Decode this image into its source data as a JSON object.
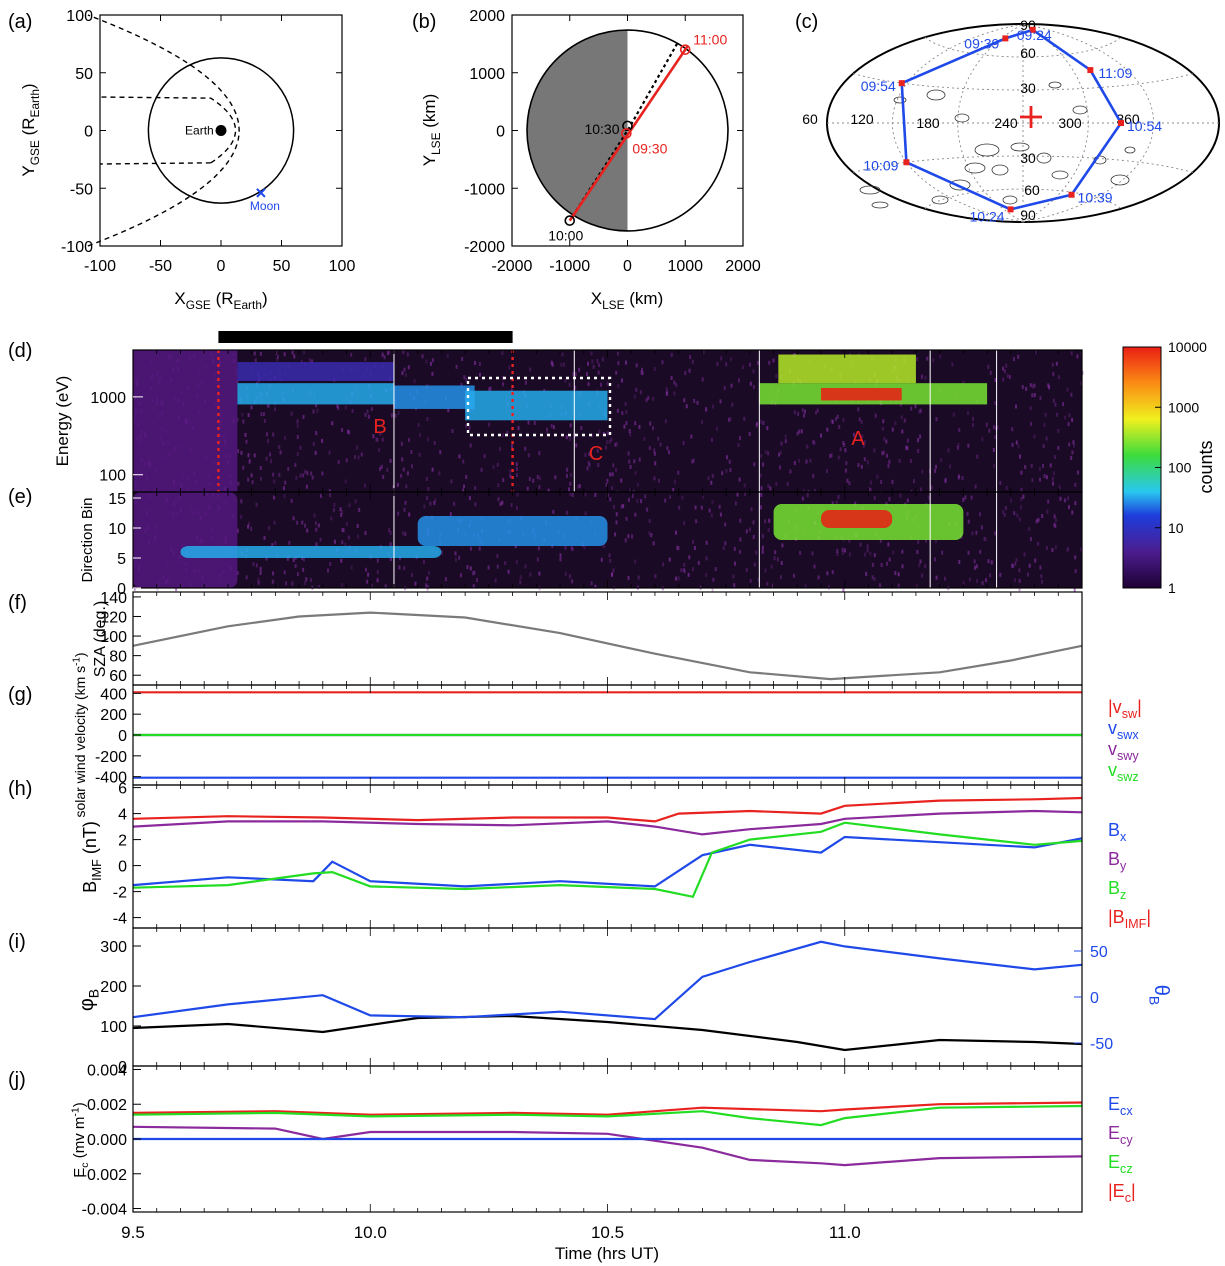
{
  "panel_labels": [
    "(a)",
    "(b)",
    "(c)",
    "(d)",
    "(e)",
    "(f)",
    "(g)",
    "(h)",
    "(i)",
    "(j)"
  ],
  "colors": {
    "red": "#e8231f",
    "blue": "#1f49e8",
    "green": "#22dd22",
    "purple": "#8b2a9c",
    "black": "#000000",
    "gray": "#7a7a7a"
  },
  "chart_data": [
    {
      "type": "scatter",
      "panel": "(a)",
      "xlabel": "X",
      "xlabel_sub": "GSE",
      "xlabel_tail": " (R",
      "xlabel_sub2": "Earth",
      "xlabel_end": ")",
      "ylabel": "Y",
      "ylabel_sub": "GSE",
      "ylabel_tail": " (R",
      "ylabel_sub2": "Earth",
      "ylabel_end": ")",
      "xlim": [
        -100,
        100
      ],
      "ylim": [
        -100,
        100
      ],
      "xticks": [
        -100,
        -50,
        0,
        50,
        100
      ],
      "yticks": [
        -100,
        -50,
        0,
        50,
        100
      ],
      "annotations": [
        "Earth",
        "Moon"
      ],
      "moon_position": [
        33,
        -54
      ],
      "moon_orbit_radius": 60
    },
    {
      "type": "line",
      "panel": "(b)",
      "xlabel": "X",
      "xlabel_sub": "LSE",
      "xlabel_tail": " (km)",
      "ylabel": "Y",
      "ylabel_sub": "LSE",
      "ylabel_tail": " (km)",
      "xlim": [
        -2000,
        2000
      ],
      "ylim": [
        -2000,
        2000
      ],
      "xticks": [
        -2000,
        -1000,
        0,
        1000,
        2000
      ],
      "yticks": [
        -2000,
        -1000,
        0,
        1000,
        2000
      ],
      "moon_radius": 1740,
      "trajectory": [
        [
          -1000,
          -1560
        ],
        [
          1040,
          1460
        ]
      ],
      "dotted_path": [
        [
          -1000,
          -1560
        ],
        [
          20,
          30
        ],
        [
          880,
          1540
        ]
      ],
      "markers": [
        {
          "label": "11:00",
          "x": 1000,
          "y": 1400,
          "color": "red"
        },
        {
          "label": "10:30",
          "x": 0,
          "y": 80,
          "color": "black"
        },
        {
          "label": "09:30",
          "x": -20,
          "y": -50,
          "color": "red"
        },
        {
          "label": "10:00",
          "x": -1000,
          "y": -1560,
          "color": "black"
        }
      ]
    },
    {
      "type": "scatter",
      "panel": "(c)",
      "grid_labels": [
        "90",
        "60",
        "30",
        "30",
        "60",
        "90",
        "60",
        "120",
        "180",
        "240",
        "300",
        "360"
      ],
      "times": [
        {
          "label": "09:24",
          "lon": 300,
          "lat": 84
        },
        {
          "label": "09:39",
          "lon": 190,
          "lat": 76
        },
        {
          "label": "09:54",
          "lon": 115,
          "lat": 30
        },
        {
          "label": "10:09",
          "lon": 120,
          "lat": -30
        },
        {
          "label": "10:24",
          "lon": 200,
          "lat": -78
        },
        {
          "label": "10:39",
          "lon": 320,
          "lat": -62
        },
        {
          "label": "10:54",
          "lon": 330,
          "lat": 0
        },
        {
          "label": "11:09",
          "lon": 320,
          "lat": 45
        }
      ]
    },
    {
      "type": "heatmap",
      "panel": "(d)",
      "ylabel": "Energy (eV)",
      "yticks": [
        "1000",
        "100"
      ],
      "ylim": [
        60,
        4000
      ],
      "annotations": [
        "B",
        "C",
        "A"
      ],
      "colorbar": {
        "label": "counts",
        "ticks": [
          "10000",
          "1000",
          "100",
          "10",
          "1"
        ]
      },
      "bands": [
        {
          "t0": 9.5,
          "t1": 9.72,
          "e_lo": 60,
          "e_hi": 4000,
          "level": 0.4
        },
        {
          "t0": 9.72,
          "t1": 10.05,
          "e_lo": 800,
          "e_hi": 1500,
          "level": 1.4
        },
        {
          "t0": 9.72,
          "t1": 10.05,
          "e_lo": 1600,
          "e_hi": 2800,
          "level": 0.7
        },
        {
          "t0": 10.05,
          "t1": 10.22,
          "e_lo": 700,
          "e_hi": 1400,
          "level": 1.3
        },
        {
          "t0": 10.2,
          "t1": 10.5,
          "e_lo": 500,
          "e_hi": 1200,
          "level": 1.4
        },
        {
          "t0": 10.82,
          "t1": 11.3,
          "e_lo": 800,
          "e_hi": 1500,
          "level": 2.2
        },
        {
          "t0": 10.86,
          "t1": 11.15,
          "e_lo": 1500,
          "e_hi": 3500,
          "level": 2.4
        },
        {
          "t0": 10.95,
          "t1": 11.12,
          "e_lo": 900,
          "e_hi": 1300,
          "level": 3.6
        }
      ]
    },
    {
      "type": "heatmap",
      "panel": "(e)",
      "ylabel": "Direction Bin",
      "yticks": [
        0,
        5,
        10,
        15
      ],
      "ylim": [
        0,
        16
      ],
      "bands": [
        {
          "t0": 9.5,
          "t1": 9.72,
          "b_lo": 0,
          "b_hi": 16,
          "level": 0.4
        },
        {
          "t0": 9.6,
          "t1": 10.15,
          "b_lo": 5,
          "b_hi": 7,
          "level": 1.4
        },
        {
          "t0": 10.1,
          "t1": 10.5,
          "b_lo": 7,
          "b_hi": 12,
          "level": 1.3
        },
        {
          "t0": 10.85,
          "t1": 11.25,
          "b_lo": 8,
          "b_hi": 14,
          "level": 2.2
        },
        {
          "t0": 10.95,
          "t1": 11.1,
          "b_lo": 10,
          "b_hi": 13,
          "level": 3.6
        }
      ]
    },
    {
      "type": "line",
      "panel": "(f)",
      "ylabel": "SZA (deg.)",
      "ylim": [
        50,
        145
      ],
      "yticks": [
        60,
        80,
        100,
        120,
        140
      ],
      "series": [
        {
          "color": "gray",
          "x": [
            9.5,
            9.7,
            9.85,
            10.0,
            10.2,
            10.4,
            10.6,
            10.8,
            10.97,
            11.2,
            11.35,
            11.5
          ],
          "y": [
            90,
            110,
            120,
            124,
            119,
            103,
            82,
            63,
            56,
            63,
            75,
            90
          ]
        }
      ]
    },
    {
      "type": "line",
      "panel": "(g)",
      "ylabel": "solar wind velocity (km s",
      "ylabel_sup": "-1",
      "ylabel_end": ")",
      "ylim": [
        -480,
        480
      ],
      "yticks": [
        -400,
        -200,
        0,
        200,
        400
      ],
      "ytick_labels": [
        "-400",
        "-200",
        "0",
        "200",
        "400"
      ],
      "legend": [
        {
          "text": "|v",
          "sub": "sw",
          "end": "|",
          "color": "red"
        },
        {
          "text": "v",
          "sub": "swx",
          "end": "",
          "color": "blue"
        },
        {
          "text": "v",
          "sub": "swy",
          "end": "",
          "color": "purple"
        },
        {
          "text": "v",
          "sub": "swz",
          "end": "",
          "color": "green"
        }
      ],
      "series": [
        {
          "color": "blue",
          "x": [
            9.5,
            11.5
          ],
          "y": [
            -410,
            -410
          ]
        },
        {
          "color": "purple",
          "x": [
            9.5,
            11.5
          ],
          "y": [
            0,
            0
          ]
        },
        {
          "color": "green",
          "x": [
            9.5,
            11.5
          ],
          "y": [
            0,
            0
          ]
        },
        {
          "color": "red",
          "x": [
            9.5,
            11.5
          ],
          "y": [
            410,
            410
          ]
        }
      ]
    },
    {
      "type": "line",
      "panel": "(h)",
      "ylabel": "B",
      "ylabel_sub": "IMF",
      "ylabel_end": " (nT)",
      "ylim": [
        -4.8,
        6.2
      ],
      "yticks": [
        -4,
        -2,
        0,
        2,
        4,
        6
      ],
      "legend": [
        {
          "text": "B",
          "sub": "x",
          "end": "",
          "color": "blue"
        },
        {
          "text": "B",
          "sub": "y",
          "end": "",
          "color": "purple"
        },
        {
          "text": "B",
          "sub": "z",
          "end": "",
          "color": "green"
        },
        {
          "text": "|B",
          "sub": "IMF",
          "end": "|",
          "color": "red"
        }
      ],
      "series": [
        {
          "color": "red",
          "x": [
            9.5,
            9.7,
            9.9,
            10.1,
            10.3,
            10.5,
            10.6,
            10.65,
            10.8,
            10.95,
            11.0,
            11.2,
            11.4,
            11.5
          ],
          "y": [
            3.6,
            3.8,
            3.7,
            3.5,
            3.7,
            3.7,
            3.4,
            4.0,
            4.2,
            4.0,
            4.6,
            5.0,
            5.1,
            5.2
          ]
        },
        {
          "color": "purple",
          "x": [
            9.5,
            9.7,
            9.9,
            10.1,
            10.3,
            10.5,
            10.6,
            10.7,
            10.8,
            10.95,
            11.0,
            11.2,
            11.4,
            11.5
          ],
          "y": [
            3.0,
            3.4,
            3.4,
            3.2,
            3.1,
            3.4,
            3.0,
            2.4,
            2.8,
            3.2,
            3.6,
            4.0,
            4.2,
            4.1
          ]
        },
        {
          "color": "blue",
          "x": [
            9.5,
            9.7,
            9.88,
            9.92,
            10.0,
            10.2,
            10.4,
            10.6,
            10.7,
            10.8,
            10.95,
            11.0,
            11.2,
            11.4,
            11.5
          ],
          "y": [
            -1.5,
            -0.9,
            -1.2,
            0.3,
            -1.2,
            -1.6,
            -1.2,
            -1.6,
            0.8,
            1.6,
            1.0,
            2.2,
            1.8,
            1.4,
            2.1
          ]
        },
        {
          "color": "green",
          "x": [
            9.5,
            9.7,
            9.88,
            9.92,
            10.0,
            10.2,
            10.4,
            10.6,
            10.68,
            10.72,
            10.8,
            10.95,
            11.0,
            11.2,
            11.4,
            11.5
          ],
          "y": [
            -1.7,
            -1.5,
            -0.6,
            -0.5,
            -1.6,
            -1.8,
            -1.5,
            -1.8,
            -2.4,
            1.0,
            2.0,
            2.6,
            3.3,
            2.4,
            1.6,
            1.9
          ]
        }
      ]
    },
    {
      "type": "line",
      "panel": "(i)",
      "ylabel": "φ",
      "ylabel_sub": "B",
      "ylabel_right": "θ",
      "ylabel_right_sub": "B",
      "ylim": [
        0,
        345
      ],
      "yticks": [
        0,
        100,
        200,
        300
      ],
      "ylim_right": [
        -75,
        75
      ],
      "yticks_right": [
        -50,
        0,
        50
      ],
      "series": [
        {
          "color": "black",
          "axis": "left",
          "x": [
            9.5,
            9.7,
            9.9,
            10.1,
            10.3,
            10.5,
            10.7,
            10.9,
            11.0,
            11.2,
            11.4,
            11.5
          ],
          "y": [
            95,
            105,
            85,
            120,
            125,
            110,
            90,
            60,
            40,
            65,
            60,
            55
          ]
        },
        {
          "color": "blue",
          "axis": "right",
          "x": [
            9.5,
            9.7,
            9.9,
            10.0,
            10.2,
            10.4,
            10.6,
            10.7,
            10.8,
            10.95,
            11.0,
            11.2,
            11.4,
            11.5
          ],
          "y": [
            -22,
            -8,
            2,
            -20,
            -22,
            -16,
            -24,
            22,
            38,
            60,
            55,
            42,
            30,
            35
          ]
        }
      ]
    },
    {
      "type": "line",
      "panel": "(j)",
      "ylabel": "E",
      "ylabel_sub": "c",
      "ylabel_end": " (mv m",
      "ylabel_sup": "-1",
      "ylabel_end2": ")",
      "ylim": [
        -0.0042,
        0.0042
      ],
      "yticks": [
        -0.004,
        -0.002,
        0.0,
        0.002,
        0.004
      ],
      "ytick_labels": [
        "-0.004",
        "-0.002",
        "0.000",
        "0.002",
        "0.004"
      ],
      "xlabel": "Time (hrs UT)",
      "xlim": [
        9.5,
        11.5
      ],
      "xticks": [
        9.5,
        10.0,
        10.5,
        11.0
      ],
      "xtick_labels": [
        "9.5",
        "10.0",
        "10.5",
        "11.0"
      ],
      "legend": [
        {
          "text": "E",
          "sub": "cx",
          "end": "",
          "color": "blue"
        },
        {
          "text": "E",
          "sub": "cy",
          "end": "",
          "color": "purple"
        },
        {
          "text": "E",
          "sub": "cz",
          "end": "",
          "color": "green"
        },
        {
          "text": "|E",
          "sub": "c",
          "end": "|",
          "color": "red"
        }
      ],
      "series": [
        {
          "color": "red",
          "x": [
            9.5,
            9.8,
            10.0,
            10.3,
            10.5,
            10.7,
            10.95,
            11.0,
            11.2,
            11.5
          ],
          "y": [
            0.0015,
            0.0016,
            0.0014,
            0.0015,
            0.0014,
            0.0018,
            0.0016,
            0.0017,
            0.002,
            0.0021
          ]
        },
        {
          "color": "green",
          "x": [
            9.5,
            9.8,
            10.0,
            10.3,
            10.5,
            10.7,
            10.8,
            10.95,
            11.0,
            11.2,
            11.5
          ],
          "y": [
            0.0014,
            0.0015,
            0.0013,
            0.0014,
            0.0013,
            0.0016,
            0.0012,
            0.0008,
            0.0012,
            0.0018,
            0.0019
          ]
        },
        {
          "color": "purple",
          "x": [
            9.5,
            9.8,
            9.9,
            10.0,
            10.3,
            10.5,
            10.7,
            10.8,
            10.95,
            11.0,
            11.2,
            11.5
          ],
          "y": [
            0.0007,
            0.0006,
            0.0,
            0.0004,
            0.0004,
            0.0003,
            -0.0005,
            -0.0012,
            -0.0014,
            -0.0015,
            -0.0011,
            -0.001
          ]
        },
        {
          "color": "blue",
          "x": [
            9.5,
            11.5
          ],
          "y": [
            0.0,
            0.0
          ]
        }
      ]
    }
  ]
}
